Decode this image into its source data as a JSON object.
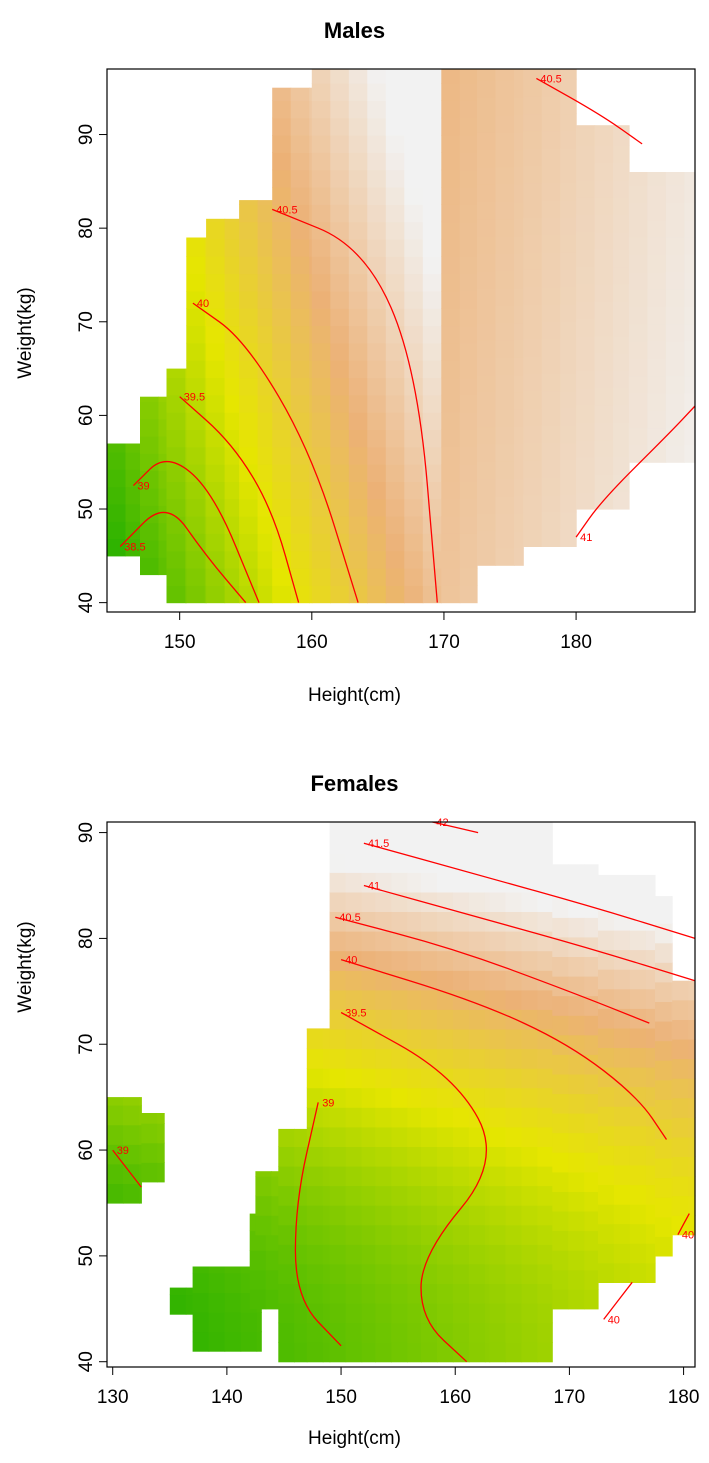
{
  "chart_data": [
    {
      "type": "heatmap",
      "title": "Males",
      "xlabel": "Height(cm)",
      "ylabel": "Weight(kg)",
      "xlim": [
        144.5,
        189
      ],
      "ylim": [
        39,
        97
      ],
      "xticks": [
        150,
        160,
        170,
        180
      ],
      "yticks": [
        40,
        50,
        60,
        70,
        80,
        90
      ],
      "color_low": "#00a600",
      "color_mid": "#e6e600",
      "color_mid2": "#ecb176",
      "color_high": "#f2f2f2",
      "contour_color": "#ff0000",
      "contour_levels": [
        {
          "level": 38.5,
          "label": "38.5",
          "points": [
            [
              145.5,
              46
            ],
            [
              149,
              51
            ],
            [
              152,
              45
            ],
            [
              155,
              40
            ]
          ]
        },
        {
          "level": 39,
          "label": "39",
          "points": [
            [
              146.5,
              52.5
            ],
            [
              149,
              56
            ],
            [
              152.5,
              52
            ],
            [
              156,
              40
            ]
          ]
        },
        {
          "level": 39.5,
          "label": "39.5",
          "points": [
            [
              150,
              62
            ],
            [
              154,
              57
            ],
            [
              157,
              50
            ],
            [
              159,
              40
            ]
          ]
        },
        {
          "level": 40,
          "label": "40",
          "points": [
            [
              151,
              72
            ],
            [
              155,
              68
            ],
            [
              160,
              56
            ],
            [
              163.5,
              40
            ]
          ]
        },
        {
          "level": 40.5,
          "label": "40.5",
          "points": [
            [
              157,
              82
            ],
            [
              164,
              78
            ],
            [
              168,
              65
            ],
            [
              169.5,
              40
            ]
          ]
        },
        {
          "level": 40.5,
          "label": "40.5",
          "points": [
            [
              177,
              96
            ],
            [
              182,
              92
            ],
            [
              185,
              89
            ]
          ]
        },
        {
          "level": 41,
          "label": "41",
          "points": [
            [
              180,
              47
            ],
            [
              182,
              51
            ],
            [
              187,
              58
            ],
            [
              189,
              61
            ]
          ]
        }
      ],
      "coverage": [
        {
          "x": [
            144.5,
            147
          ],
          "y": [
            45,
            57
          ]
        },
        {
          "x": [
            147,
            149
          ],
          "y": [
            43,
            62
          ]
        },
        {
          "x": [
            149,
            150.5
          ],
          "y": [
            40,
            65
          ]
        },
        {
          "x": [
            150.5,
            152
          ],
          "y": [
            40,
            79
          ]
        },
        {
          "x": [
            152,
            154.5
          ],
          "y": [
            40,
            81
          ]
        },
        {
          "x": [
            154.5,
            157
          ],
          "y": [
            40,
            83
          ]
        },
        {
          "x": [
            157,
            160
          ],
          "y": [
            40,
            95
          ]
        },
        {
          "x": [
            160,
            172.5
          ],
          "y": [
            40,
            97
          ]
        },
        {
          "x": [
            172.5,
            176
          ],
          "y": [
            44,
            97
          ]
        },
        {
          "x": [
            176,
            180
          ],
          "y": [
            46,
            97
          ]
        },
        {
          "x": [
            180,
            184
          ],
          "y": [
            50,
            91
          ]
        },
        {
          "x": [
            184,
            189
          ],
          "y": [
            55,
            86
          ]
        }
      ]
    },
    {
      "type": "heatmap",
      "title": "Females",
      "xlabel": "Height(cm)",
      "ylabel": "Weight(kg)",
      "xlim": [
        129.5,
        181
      ],
      "ylim": [
        39.5,
        91
      ],
      "xticks": [
        130,
        140,
        150,
        160,
        170,
        180
      ],
      "yticks": [
        40,
        50,
        60,
        70,
        80,
        90
      ],
      "color_low": "#00a600",
      "color_mid": "#e6e600",
      "color_mid2": "#ecb176",
      "color_high": "#f2f2f2",
      "contour_color": "#ff0000",
      "contour_levels": [
        {
          "level": 39,
          "label": "39",
          "points": [
            [
              130,
              60
            ],
            [
              132.5,
              56.5
            ]
          ]
        },
        {
          "level": 39,
          "label": "39",
          "points": [
            [
              148,
              64.5
            ],
            [
              146,
              55
            ],
            [
              146,
              46
            ],
            [
              150,
              41.5
            ]
          ]
        },
        {
          "level": 39.5,
          "label": "39.5",
          "points": [
            [
              150,
              73
            ],
            [
              160,
              67
            ],
            [
              164,
              59
            ],
            [
              157,
              50
            ],
            [
              157,
              44
            ],
            [
              161,
              40
            ]
          ]
        },
        {
          "level": 40,
          "label": "40",
          "points": [
            [
              150,
              78
            ],
            [
              162,
              74
            ],
            [
              170,
              70
            ],
            [
              176,
              65
            ],
            [
              178.5,
              61
            ]
          ]
        },
        {
          "level": 40,
          "label": "40",
          "points": [
            [
              173,
              44
            ],
            [
              175.5,
              47.5
            ]
          ]
        },
        {
          "level": 40,
          "label": "40",
          "points": [
            [
              179.5,
              52
            ],
            [
              180.5,
              54
            ]
          ]
        },
        {
          "level": 40.5,
          "label": "40.5",
          "points": [
            [
              149.5,
              82
            ],
            [
              160,
              79
            ],
            [
              170,
              75
            ],
            [
              177,
              72
            ]
          ]
        },
        {
          "level": 41,
          "label": "41",
          "points": [
            [
              152,
              85
            ],
            [
              162,
              82
            ],
            [
              172,
              79
            ],
            [
              181,
              76
            ]
          ]
        },
        {
          "level": 41.5,
          "label": "41.5",
          "points": [
            [
              152,
              89
            ],
            [
              162,
              86
            ],
            [
              172,
              83
            ],
            [
              181,
              80
            ]
          ]
        },
        {
          "level": 42,
          "label": "42",
          "points": [
            [
              158,
              91
            ],
            [
              162,
              90
            ]
          ]
        }
      ],
      "coverage": [
        {
          "x": [
            129.5,
            132.5
          ],
          "y": [
            55,
            65
          ]
        },
        {
          "x": [
            132.5,
            134.5
          ],
          "y": [
            57,
            63.5
          ]
        },
        {
          "x": [
            135,
            137
          ],
          "y": [
            44.5,
            47
          ]
        },
        {
          "x": [
            137,
            143
          ],
          "y": [
            41,
            49
          ]
        },
        {
          "x": [
            142,
            144.5
          ],
          "y": [
            45,
            54
          ]
        },
        {
          "x": [
            142.5,
            146.5
          ],
          "y": [
            52,
            58
          ]
        },
        {
          "x": [
            144.5,
            147
          ],
          "y": [
            40,
            62
          ]
        },
        {
          "x": [
            147,
            149
          ],
          "y": [
            40,
            71.5
          ]
        },
        {
          "x": [
            149,
            153
          ],
          "y": [
            40,
            91
          ]
        },
        {
          "x": [
            153,
            157
          ],
          "y": [
            40,
            91
          ]
        },
        {
          "x": [
            157,
            163
          ],
          "y": [
            40,
            91
          ]
        },
        {
          "x": [
            163,
            168.5
          ],
          "y": [
            40,
            91
          ]
        },
        {
          "x": [
            168.5,
            172.5
          ],
          "y": [
            45,
            87
          ]
        },
        {
          "x": [
            172.5,
            177.5
          ],
          "y": [
            47.5,
            86
          ]
        },
        {
          "x": [
            177.5,
            179
          ],
          "y": [
            50,
            84
          ]
        },
        {
          "x": [
            179,
            181
          ],
          "y": [
            52,
            76
          ]
        }
      ]
    }
  ]
}
